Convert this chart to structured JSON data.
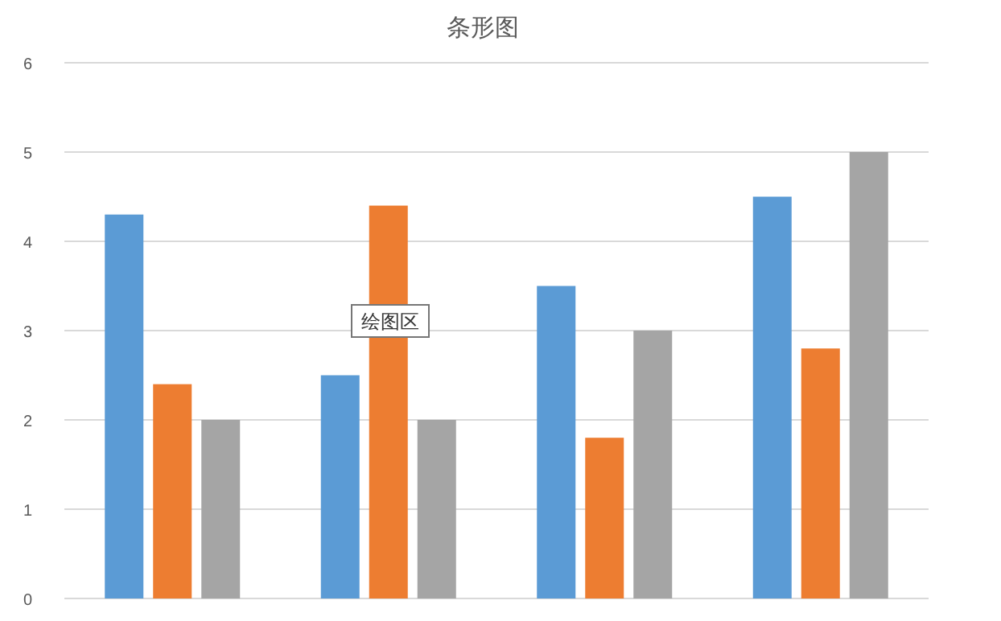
{
  "chart_data": {
    "type": "bar",
    "title": "条形图",
    "categories": [
      null,
      null,
      null,
      null
    ],
    "series": [
      {
        "color": "#5b9bd5",
        "values": [
          4.3,
          2.5,
          3.5,
          4.5
        ]
      },
      {
        "color": "#ed7d31",
        "values": [
          2.4,
          4.4,
          1.8,
          2.8
        ]
      },
      {
        "color": "#a5a5a5",
        "values": [
          2,
          2,
          3,
          5
        ]
      }
    ],
    "ylim": [
      0,
      6
    ],
    "yticks": [
      0,
      1,
      2,
      3,
      4,
      5,
      6
    ],
    "grid": "y",
    "annotations": [
      "绘图区"
    ]
  }
}
